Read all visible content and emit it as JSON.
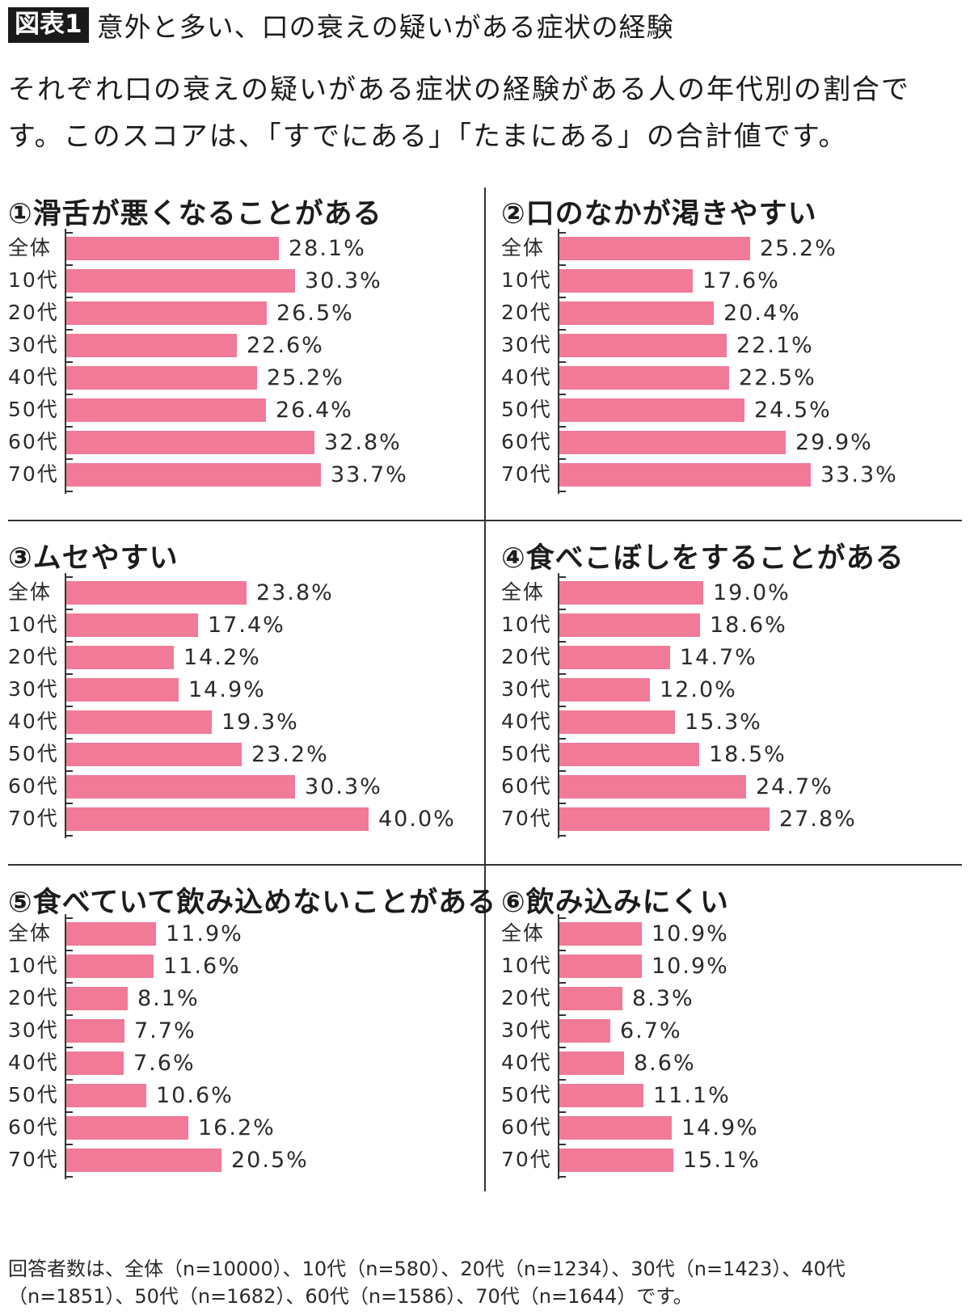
{
  "header": {
    "badge": "図表1",
    "title": "意外と多い、口の衰えの疑いがある症状の経験"
  },
  "description": "それぞれ口の衰えの疑いがある症状の経験がある人の年代別の割合です。このスコアは、「すでにある」「たまにある」の合計値です。",
  "footnote": "回答者数は、全体（n=10000）、10代（n=580）、20代（n=1234）、30代（n=1423）、40代（n=1851）、50代（n=1682）、60代（n=1586）、70代（n=1644）です。",
  "colors": {
    "bar": "#f07a98",
    "axis": "#333333"
  },
  "chart_data": [
    {
      "type": "bar",
      "orientation": "horizontal",
      "title": "①滑舌が悪くなることがある",
      "categories": [
        "全体",
        "10代",
        "20代",
        "30代",
        "40代",
        "50代",
        "60代",
        "70代"
      ],
      "values": [
        28.1,
        30.3,
        26.5,
        22.6,
        25.2,
        26.4,
        32.8,
        33.7
      ],
      "labels": [
        "28.1%",
        "30.3%",
        "26.5%",
        "22.6%",
        "25.2%",
        "26.4%",
        "32.8%",
        "33.7%"
      ],
      "unit": "%",
      "xlim": [
        0,
        50
      ]
    },
    {
      "type": "bar",
      "orientation": "horizontal",
      "title": "②口のなかが渇きやすい",
      "categories": [
        "全体",
        "10代",
        "20代",
        "30代",
        "40代",
        "50代",
        "60代",
        "70代"
      ],
      "values": [
        25.2,
        17.6,
        20.4,
        22.1,
        22.5,
        24.5,
        29.9,
        33.3
      ],
      "labels": [
        "25.2%",
        "17.6%",
        "20.4%",
        "22.1%",
        "22.5%",
        "24.5%",
        "29.9%",
        "33.3%"
      ],
      "unit": "%",
      "xlim": [
        0,
        50
      ]
    },
    {
      "type": "bar",
      "orientation": "horizontal",
      "title": "③ムセやすい",
      "categories": [
        "全体",
        "10代",
        "20代",
        "30代",
        "40代",
        "50代",
        "60代",
        "70代"
      ],
      "values": [
        23.8,
        17.4,
        14.2,
        14.9,
        19.3,
        23.2,
        30.3,
        40.0
      ],
      "labels": [
        "23.8%",
        "17.4%",
        "14.2%",
        "14.9%",
        "19.3%",
        "23.2%",
        "30.3%",
        "40.0%"
      ],
      "unit": "%",
      "xlim": [
        0,
        50
      ]
    },
    {
      "type": "bar",
      "orientation": "horizontal",
      "title": "④食べこぼしをすることがある",
      "categories": [
        "全体",
        "10代",
        "20代",
        "30代",
        "40代",
        "50代",
        "60代",
        "70代"
      ],
      "values": [
        19.0,
        18.6,
        14.7,
        12.0,
        15.3,
        18.5,
        24.7,
        27.8
      ],
      "labels": [
        "19.0%",
        "18.6%",
        "14.7%",
        "12.0%",
        "15.3%",
        "18.5%",
        "24.7%",
        "27.8%"
      ],
      "unit": "%",
      "xlim": [
        0,
        50
      ]
    },
    {
      "type": "bar",
      "orientation": "horizontal",
      "title": "⑤食べていて飲み込めないことがある",
      "categories": [
        "全体",
        "10代",
        "20代",
        "30代",
        "40代",
        "50代",
        "60代",
        "70代"
      ],
      "values": [
        11.9,
        11.6,
        8.1,
        7.7,
        7.6,
        10.6,
        16.2,
        20.5
      ],
      "labels": [
        "11.9%",
        "11.6%",
        "8.1%",
        "7.7%",
        "7.6%",
        "10.6%",
        "16.2%",
        "20.5%"
      ],
      "unit": "%",
      "xlim": [
        0,
        50
      ]
    },
    {
      "type": "bar",
      "orientation": "horizontal",
      "title": "⑥飲み込みにくい",
      "categories": [
        "全体",
        "10代",
        "20代",
        "30代",
        "40代",
        "50代",
        "60代",
        "70代"
      ],
      "values": [
        10.9,
        10.9,
        8.3,
        6.7,
        8.6,
        11.1,
        14.9,
        15.1
      ],
      "labels": [
        "10.9%",
        "10.9%",
        "8.3%",
        "6.7%",
        "8.6%",
        "11.1%",
        "14.9%",
        "15.1%"
      ],
      "unit": "%",
      "xlim": [
        0,
        50
      ]
    }
  ]
}
